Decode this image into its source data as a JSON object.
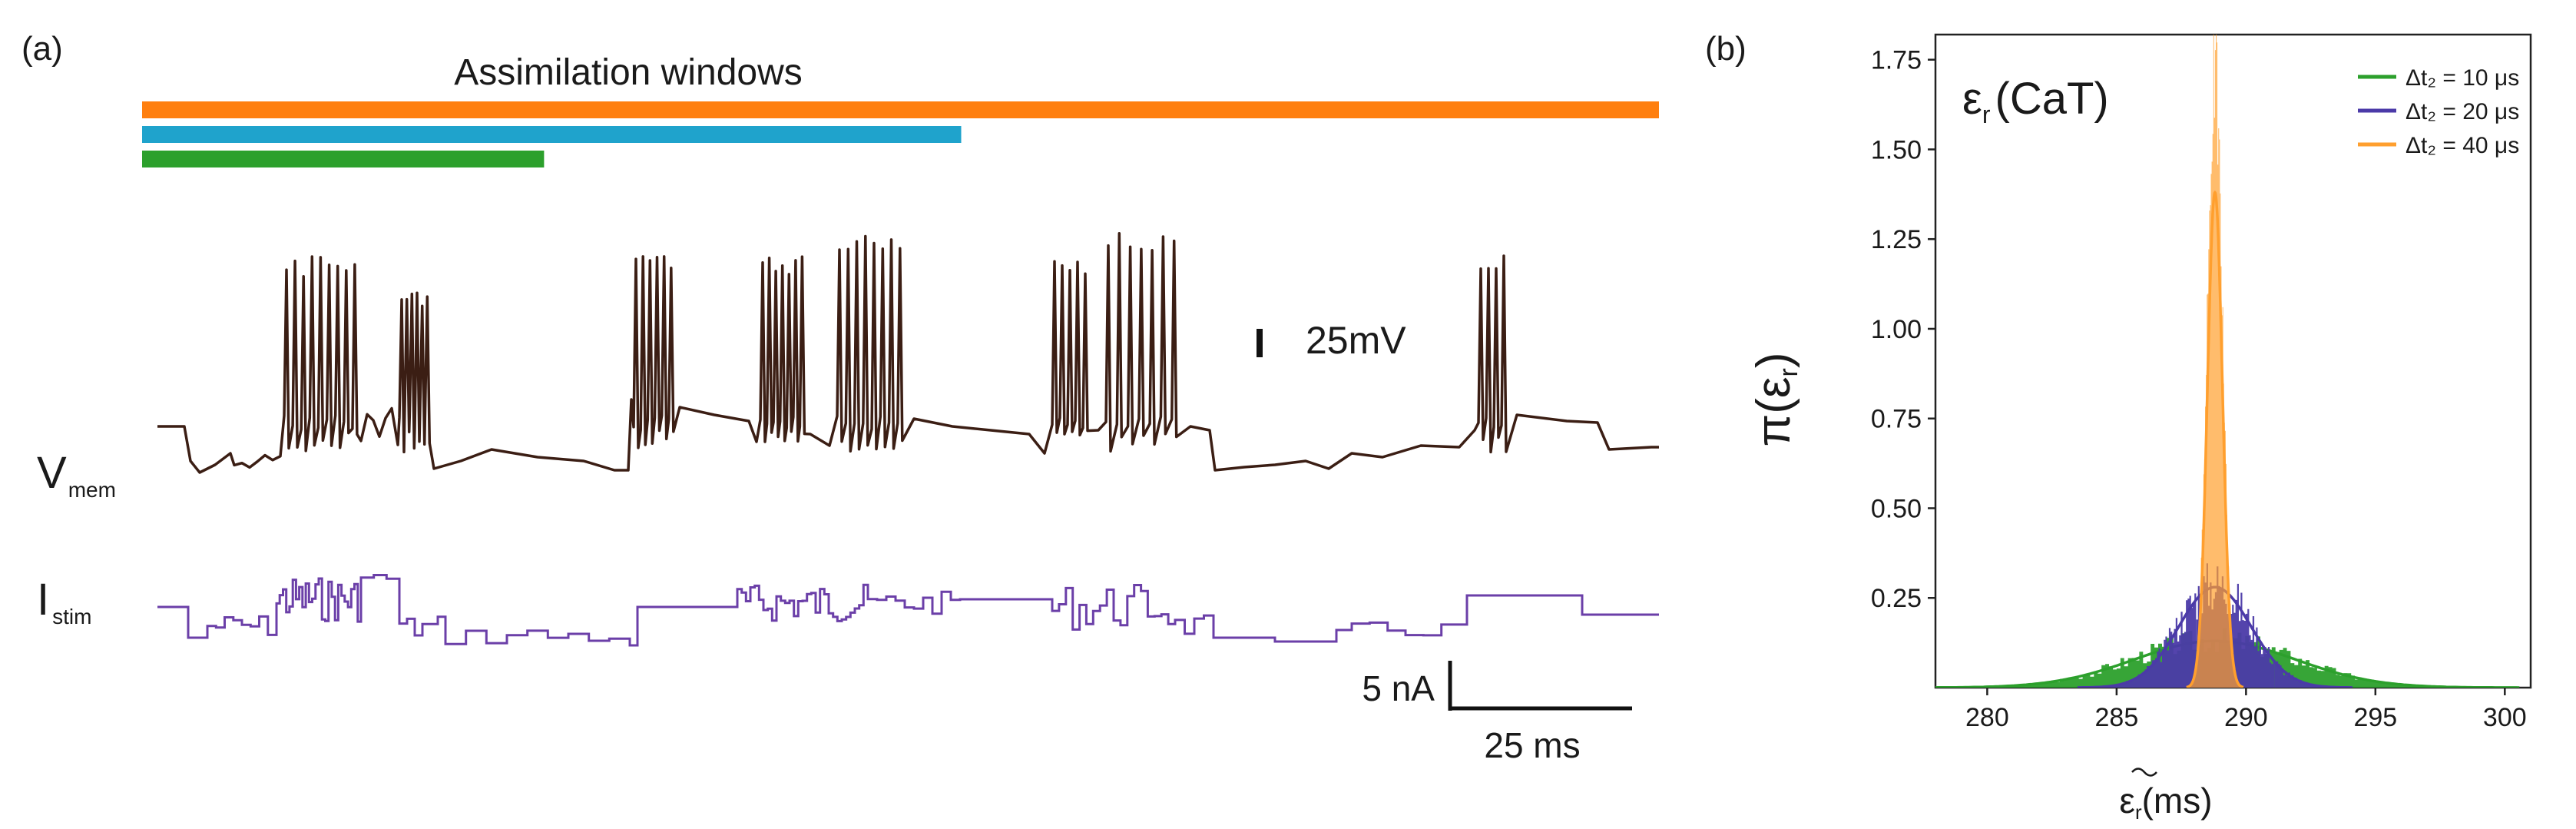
{
  "panel_a": {
    "label": "(a)",
    "title": "Assimilation windows",
    "windows": [
      {
        "color": "#ff7f0e",
        "fraction": 1.0
      },
      {
        "color": "#1fa3cc",
        "fraction": 0.54
      },
      {
        "color": "#2ca02c",
        "fraction": 0.265
      }
    ],
    "vmem": {
      "label_main": "V",
      "label_sub": "mem",
      "color": "#3b1e14"
    },
    "istim": {
      "label_main": "I",
      "label_sub": "stim",
      "color": "#6b3fa8"
    },
    "scale_v": "25mV",
    "scale_i": "5 nA",
    "scale_t": "25 ms"
  },
  "panel_b": {
    "label": "(b)",
    "annotation_main": "ε",
    "annotation_sub": "r",
    "annotation_tail": "(CaT)",
    "ylabel_main": "π(ε",
    "ylabel_sub": "r",
    "ylabel_tail": ")",
    "xlabel_main": "ε",
    "xlabel_sub": "r",
    "xlabel_tail": "(ms)"
  },
  "chart_data": {
    "type": "area",
    "xlim": [
      278,
      301
    ],
    "ylim": [
      0,
      1.82
    ],
    "xticks": [
      280,
      285,
      290,
      295,
      300
    ],
    "yticks": [
      0.25,
      0.5,
      0.75,
      1.0,
      1.25,
      1.5,
      1.75
    ],
    "xtick_labels": [
      "280",
      "285",
      "290",
      "295",
      "300"
    ],
    "ytick_labels": [
      "0.25",
      "0.50",
      "0.75",
      "1.00",
      "1.25",
      "1.50",
      "1.75"
    ],
    "grid": false,
    "legend_position": "top-right",
    "series": [
      {
        "name": "Δt₂ = 10 μs",
        "color": "#2ca02c",
        "mean": 288.8,
        "std": 3.1,
        "peak": 0.13
      },
      {
        "name": "Δt₂ = 20 μs",
        "color": "#4b3aa8",
        "mean": 288.8,
        "std": 1.4,
        "peak": 0.28
      },
      {
        "name": "Δt₂ = 40 μs",
        "color": "#ff9f2e",
        "mean": 288.8,
        "std": 0.29,
        "peak": 1.38
      }
    ]
  }
}
